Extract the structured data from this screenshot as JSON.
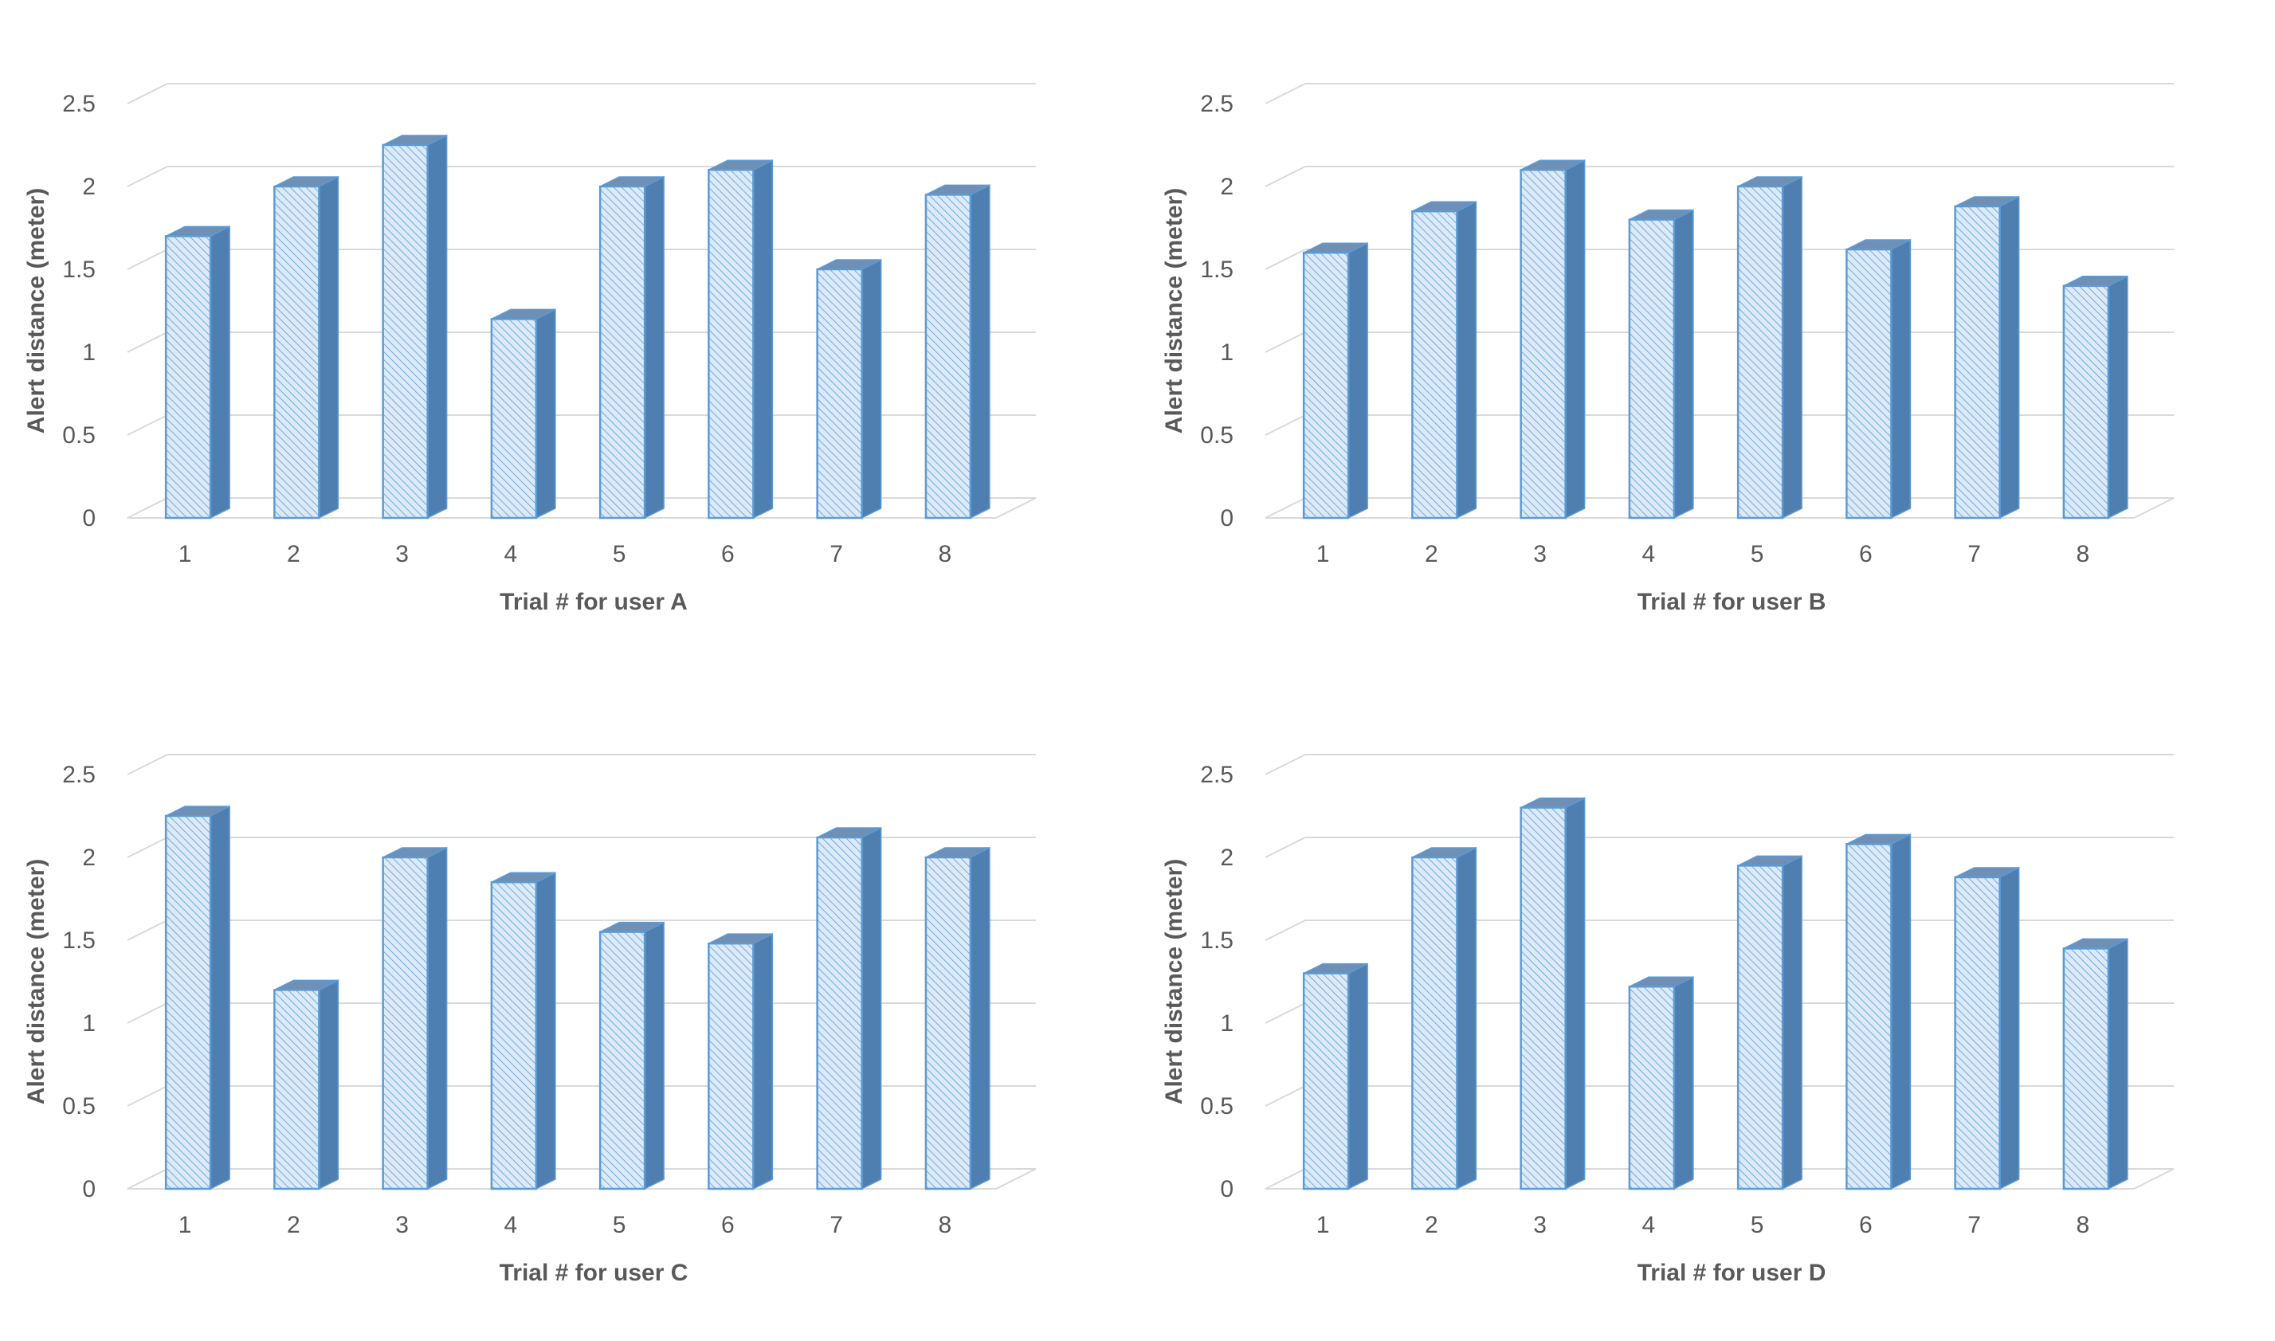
{
  "colors": {
    "bar_face": "#dbe9f8",
    "bar_stroke": "#5b9bd5",
    "bar_side": "#4f7fb0",
    "bar_top": "#6f8fb5",
    "grid": "#d9d9d9",
    "text": "#595959"
  },
  "chart_data": [
    {
      "type": "bar",
      "title": "",
      "xlabel": "Trial # for user A",
      "ylabel": "Alert distance (meter)",
      "ylim": [
        0,
        2.5
      ],
      "yticks": [
        "0",
        "0.5",
        "1",
        "1.5",
        "2",
        "2.5"
      ],
      "categories": [
        "1",
        "2",
        "3",
        "4",
        "5",
        "6",
        "7",
        "8"
      ],
      "values": [
        1.7,
        2.0,
        2.25,
        1.2,
        2.0,
        2.1,
        1.5,
        1.95
      ]
    },
    {
      "type": "bar",
      "title": "",
      "xlabel": "Trial # for user B",
      "ylabel": "Alert distance (meter)",
      "ylim": [
        0,
        2.5
      ],
      "yticks": [
        "0",
        "0.5",
        "1",
        "1.5",
        "2",
        "2.5"
      ],
      "categories": [
        "1",
        "2",
        "3",
        "4",
        "5",
        "6",
        "7",
        "8"
      ],
      "values": [
        1.6,
        1.85,
        2.1,
        1.8,
        2.0,
        1.62,
        1.88,
        1.4
      ]
    },
    {
      "type": "bar",
      "title": "",
      "xlabel": "Trial # for user C",
      "ylabel": "Alert distance (meter)",
      "ylim": [
        0,
        2.5
      ],
      "yticks": [
        "0",
        "0.5",
        "1",
        "1.5",
        "2",
        "2.5"
      ],
      "categories": [
        "1",
        "2",
        "3",
        "4",
        "5",
        "6",
        "7",
        "8"
      ],
      "values": [
        2.25,
        1.2,
        2.0,
        1.85,
        1.55,
        1.48,
        2.12,
        2.0
      ]
    },
    {
      "type": "bar",
      "title": "",
      "xlabel": "Trial # for user D",
      "ylabel": "Alert distance (meter)",
      "ylim": [
        0,
        2.5
      ],
      "yticks": [
        "0",
        "0.5",
        "1",
        "1.5",
        "2",
        "2.5"
      ],
      "categories": [
        "1",
        "2",
        "3",
        "4",
        "5",
        "6",
        "7",
        "8"
      ],
      "values": [
        1.3,
        2.0,
        2.3,
        1.22,
        1.95,
        2.08,
        1.88,
        1.45
      ]
    }
  ]
}
